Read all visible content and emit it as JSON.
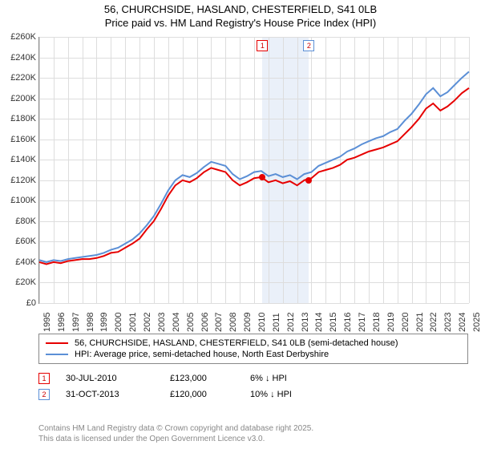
{
  "title_line1": "56, CHURCHSIDE, HASLAND, CHESTERFIELD, S41 0LB",
  "title_line2": "Price paid vs. HM Land Registry's House Price Index (HPI)",
  "chart": {
    "type": "line",
    "x_start_year": 1995,
    "x_end_year": 2025,
    "ylim_min": 0,
    "ylim_max": 260000,
    "ytick_step": 20000,
    "y_prefix": "£",
    "y_suffix": "K",
    "background_color": "#ffffff",
    "grid_color": "#dddddd",
    "highlight_band_color": "#eaf0f9",
    "series": [
      {
        "id": "property",
        "label": "56, CHURCHSIDE, HASLAND, CHESTERFIELD, S41 0LB (semi-detached house)",
        "color": "#e60000",
        "width": 2,
        "data": [
          [
            1995,
            40000
          ],
          [
            1995.5,
            38000
          ],
          [
            1996,
            40000
          ],
          [
            1996.5,
            39000
          ],
          [
            1997,
            41000
          ],
          [
            1997.5,
            42000
          ],
          [
            1998,
            43000
          ],
          [
            1998.5,
            43000
          ],
          [
            1999,
            44000
          ],
          [
            1999.5,
            46000
          ],
          [
            2000,
            49000
          ],
          [
            2000.5,
            50000
          ],
          [
            2001,
            54000
          ],
          [
            2001.5,
            58000
          ],
          [
            2002,
            63000
          ],
          [
            2002.5,
            72000
          ],
          [
            2003,
            80000
          ],
          [
            2003.5,
            92000
          ],
          [
            2004,
            105000
          ],
          [
            2004.5,
            115000
          ],
          [
            2005,
            120000
          ],
          [
            2005.5,
            118000
          ],
          [
            2006,
            122000
          ],
          [
            2006.5,
            128000
          ],
          [
            2007,
            132000
          ],
          [
            2007.5,
            130000
          ],
          [
            2008,
            128000
          ],
          [
            2008.5,
            120000
          ],
          [
            2009,
            115000
          ],
          [
            2009.5,
            118000
          ],
          [
            2010,
            122000
          ],
          [
            2010.5,
            123000
          ],
          [
            2011,
            118000
          ],
          [
            2011.5,
            120000
          ],
          [
            2012,
            117000
          ],
          [
            2012.5,
            119000
          ],
          [
            2013,
            115000
          ],
          [
            2013.5,
            120000
          ],
          [
            2014,
            122000
          ],
          [
            2014.5,
            128000
          ],
          [
            2015,
            130000
          ],
          [
            2015.5,
            132000
          ],
          [
            2016,
            135000
          ],
          [
            2016.5,
            140000
          ],
          [
            2017,
            142000
          ],
          [
            2017.5,
            145000
          ],
          [
            2018,
            148000
          ],
          [
            2018.5,
            150000
          ],
          [
            2019,
            152000
          ],
          [
            2019.5,
            155000
          ],
          [
            2020,
            158000
          ],
          [
            2020.5,
            165000
          ],
          [
            2021,
            172000
          ],
          [
            2021.5,
            180000
          ],
          [
            2022,
            190000
          ],
          [
            2022.5,
            195000
          ],
          [
            2023,
            188000
          ],
          [
            2023.5,
            192000
          ],
          [
            2024,
            198000
          ],
          [
            2024.5,
            205000
          ],
          [
            2025,
            210000
          ]
        ]
      },
      {
        "id": "hpi",
        "label": "HPI: Average price, semi-detached house, North East Derbyshire",
        "color": "#5b8fd6",
        "width": 2,
        "data": [
          [
            1995,
            42000
          ],
          [
            1995.5,
            40000
          ],
          [
            1996,
            42000
          ],
          [
            1996.5,
            41000
          ],
          [
            1997,
            43000
          ],
          [
            1997.5,
            44000
          ],
          [
            1998,
            45000
          ],
          [
            1998.5,
            46000
          ],
          [
            1999,
            47000
          ],
          [
            1999.5,
            49000
          ],
          [
            2000,
            52000
          ],
          [
            2000.5,
            54000
          ],
          [
            2001,
            58000
          ],
          [
            2001.5,
            62000
          ],
          [
            2002,
            68000
          ],
          [
            2002.5,
            76000
          ],
          [
            2003,
            85000
          ],
          [
            2003.5,
            97000
          ],
          [
            2004,
            110000
          ],
          [
            2004.5,
            120000
          ],
          [
            2005,
            125000
          ],
          [
            2005.5,
            123000
          ],
          [
            2006,
            127000
          ],
          [
            2006.5,
            133000
          ],
          [
            2007,
            138000
          ],
          [
            2007.5,
            136000
          ],
          [
            2008,
            134000
          ],
          [
            2008.5,
            126000
          ],
          [
            2009,
            121000
          ],
          [
            2009.5,
            124000
          ],
          [
            2010,
            128000
          ],
          [
            2010.5,
            129000
          ],
          [
            2011,
            124000
          ],
          [
            2011.5,
            126000
          ],
          [
            2012,
            123000
          ],
          [
            2012.5,
            125000
          ],
          [
            2013,
            121000
          ],
          [
            2013.5,
            126000
          ],
          [
            2014,
            128000
          ],
          [
            2014.5,
            134000
          ],
          [
            2015,
            137000
          ],
          [
            2015.5,
            140000
          ],
          [
            2016,
            143000
          ],
          [
            2016.5,
            148000
          ],
          [
            2017,
            151000
          ],
          [
            2017.5,
            155000
          ],
          [
            2018,
            158000
          ],
          [
            2018.5,
            161000
          ],
          [
            2019,
            163000
          ],
          [
            2019.5,
            167000
          ],
          [
            2020,
            170000
          ],
          [
            2020.5,
            178000
          ],
          [
            2021,
            185000
          ],
          [
            2021.5,
            194000
          ],
          [
            2022,
            204000
          ],
          [
            2022.5,
            210000
          ],
          [
            2023,
            202000
          ],
          [
            2023.5,
            206000
          ],
          [
            2024,
            213000
          ],
          [
            2024.5,
            220000
          ],
          [
            2025,
            226000
          ]
        ]
      }
    ],
    "sale_markers": [
      {
        "index": "1",
        "year": 2010.58,
        "price": 123000,
        "border_color": "#e60000",
        "dot_color": "#e60000"
      },
      {
        "index": "2",
        "year": 2013.83,
        "price": 120000,
        "border_color": "#5b8fd6",
        "dot_color": "#e60000"
      }
    ],
    "highlight_band": {
      "from_year": 2010.58,
      "to_year": 2013.83
    }
  },
  "legend": {
    "items": [
      {
        "color": "#e60000",
        "label": "56, CHURCHSIDE, HASLAND, CHESTERFIELD, S41 0LB (semi-detached house)"
      },
      {
        "color": "#5b8fd6",
        "label": "HPI: Average price, semi-detached house, North East Derbyshire"
      }
    ]
  },
  "sales": [
    {
      "index": "1",
      "border_color": "#e60000",
      "date": "30-JUL-2010",
      "price": "£123,000",
      "diff": "6% ↓ HPI"
    },
    {
      "index": "2",
      "border_color": "#5b8fd6",
      "date": "31-OCT-2013",
      "price": "£120,000",
      "diff": "10% ↓ HPI"
    }
  ],
  "footer_line1": "Contains HM Land Registry data © Crown copyright and database right 2025.",
  "footer_line2": "This data is licensed under the Open Government Licence v3.0."
}
